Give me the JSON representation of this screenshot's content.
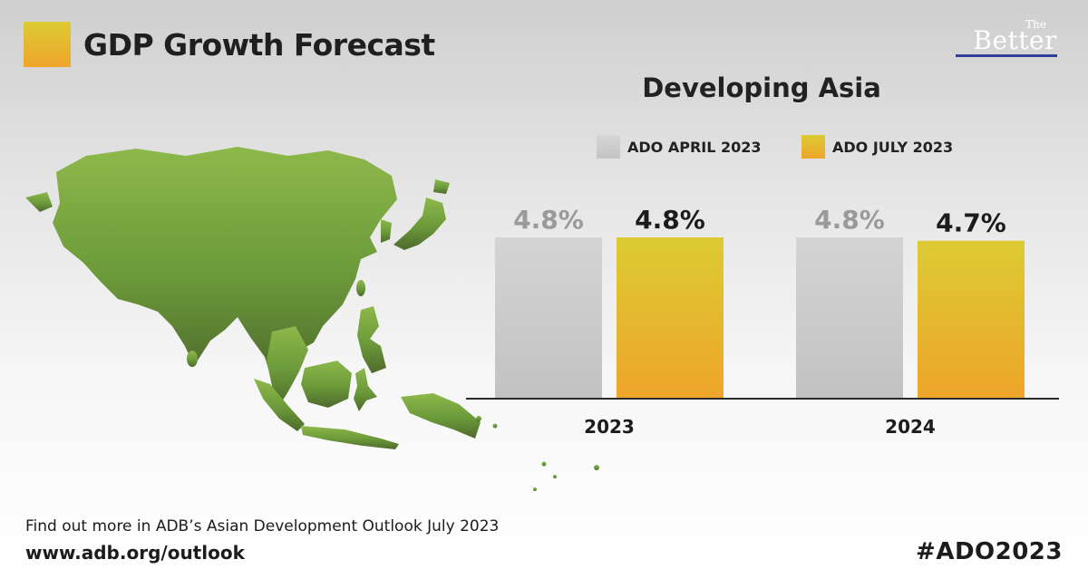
{
  "header": {
    "title": "GDP Growth Forecast",
    "brand_small": "The",
    "brand_big": "Better"
  },
  "colors": {
    "april_top": "#cfcfcf",
    "april_bottom": "#bdbdbd",
    "july_top": "#dccb34",
    "july_bottom": "#eea52a",
    "map_light": "#8db84a",
    "map_dark": "#4e6a2c",
    "brand_line": "#2e3f9a"
  },
  "map": {
    "region": "Developing Asia map",
    "icon": "asia-map-icon"
  },
  "chart_data": {
    "type": "bar",
    "title": "Developing Asia",
    "categories": [
      "2023",
      "2024"
    ],
    "series": [
      {
        "name": "ADO APRIL 2023",
        "values": [
          4.8,
          4.8
        ],
        "labels": [
          "4.8%",
          "4.8%"
        ]
      },
      {
        "name": "ADO JULY 2023",
        "values": [
          4.8,
          4.7
        ],
        "labels": [
          "4.8%",
          "4.7%"
        ]
      }
    ],
    "ylabel": "",
    "ylim": [
      0,
      4.8
    ],
    "grid": false,
    "legend": "top"
  },
  "footer": {
    "line1": "Find out more in ADB’s Asian Development Outlook July 2023",
    "url": "www.adb.org/outlook",
    "hashtag": "#ADO2023"
  }
}
